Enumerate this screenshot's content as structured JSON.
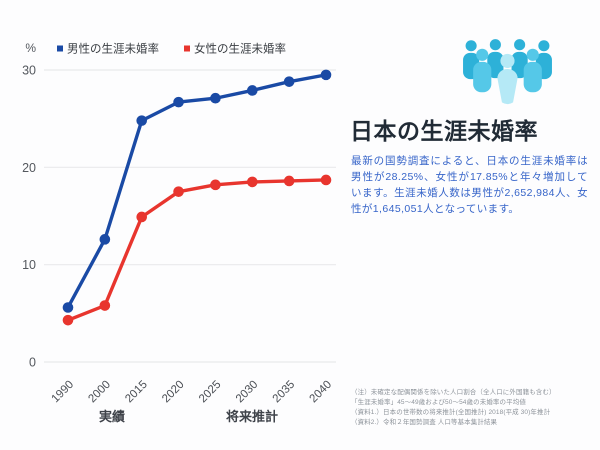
{
  "panel": {
    "title": "日本の生涯未婚率",
    "body": "最新の国勢調査によると、日本の生涯未婚率は男性が28.25%、女性が17.85%と年々増加しています。生涯未婚人数は男性が2,652,984人、女性が1,645,051人となっています。",
    "icon": "people-group-icon",
    "icon_colors": {
      "back": "#2db1d8",
      "middle": "#55c8e8",
      "front": "#b5e9f6"
    },
    "notes": [
      "（注）未確定な配偶関係を除いた人口割合（全人口に外国籍も含む）",
      "「生涯未婚率」45〜49歳および50〜54歳の未婚率の平均値",
      "（資料1.）日本の世帯数の将来推計(全国推計) 2018(平成 30)年推計",
      "（資料2.）令和２年国勢調査 人口等基本集計結果"
    ]
  },
  "chart_data": {
    "type": "line",
    "title": "",
    "ylabel": "%",
    "xlabel": "",
    "ylim": [
      0,
      30
    ],
    "yticks": [
      0,
      10,
      20,
      30
    ],
    "grid": "horizontal",
    "legend_position": "top",
    "categories": [
      "1990",
      "2000",
      "2015",
      "2020",
      "2025",
      "2030",
      "2035",
      "2040"
    ],
    "series": [
      {
        "name": "男性の生涯未婚率",
        "color": "#1a4aa5",
        "values": [
          5.6,
          12.6,
          24.8,
          26.7,
          27.1,
          27.9,
          28.8,
          29.5
        ]
      },
      {
        "name": "女性の生涯未婚率",
        "color": "#e8352e",
        "values": [
          4.3,
          5.8,
          14.9,
          17.5,
          18.2,
          18.5,
          18.6,
          18.7
        ]
      }
    ],
    "x_group_labels": [
      {
        "label": "実績",
        "categories": [
          "1990",
          "2000",
          "2015"
        ]
      },
      {
        "label": "将来推計",
        "categories": [
          "2020",
          "2025",
          "2030",
          "2035",
          "2040"
        ]
      }
    ]
  }
}
